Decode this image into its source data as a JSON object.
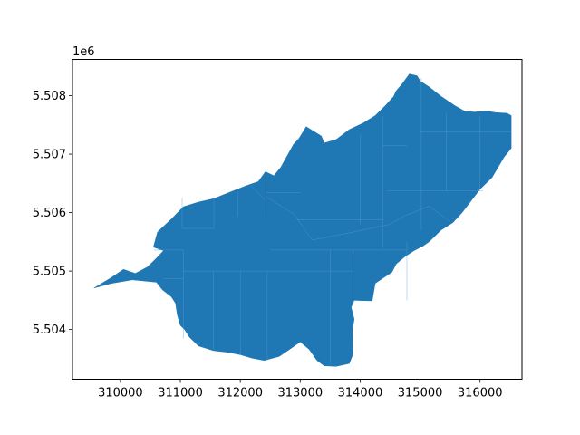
{
  "chart_data": {
    "type": "map",
    "title": "",
    "xlabel": "",
    "ylabel": "",
    "y_offset_label": "1e6",
    "xlim": [
      309200,
      316700
    ],
    "ylim": [
      5503150,
      5508620
    ],
    "y_scale_factor": 1000000,
    "x_ticks": [
      {
        "value": 310000,
        "label": "310000"
      },
      {
        "value": 311000,
        "label": "311000"
      },
      {
        "value": 312000,
        "label": "312000"
      },
      {
        "value": 313000,
        "label": "313000"
      },
      {
        "value": 314000,
        "label": "314000"
      },
      {
        "value": 315000,
        "label": "315000"
      },
      {
        "value": 316000,
        "label": "316000"
      }
    ],
    "y_ticks": [
      {
        "value": 5504000,
        "label": "5.504"
      },
      {
        "value": 5505000,
        "label": "5.505"
      },
      {
        "value": 5506000,
        "label": "5.506"
      },
      {
        "value": 5507000,
        "label": "5.507"
      },
      {
        "value": 5508000,
        "label": "5.508"
      }
    ],
    "grid": false,
    "fill_color": "#1f77b4",
    "edge_color": "#5b9bd0",
    "outline": [
      [
        309560,
        5504710
      ],
      [
        309850,
        5504890
      ],
      [
        310050,
        5505030
      ],
      [
        310250,
        5504960
      ],
      [
        310450,
        5505070
      ],
      [
        310600,
        5505220
      ],
      [
        310720,
        5505350
      ],
      [
        310550,
        5505410
      ],
      [
        310620,
        5505670
      ],
      [
        310860,
        5505900
      ],
      [
        311050,
        5506100
      ],
      [
        311300,
        5506180
      ],
      [
        311560,
        5506240
      ],
      [
        311900,
        5506380
      ],
      [
        312100,
        5506460
      ],
      [
        312300,
        5506530
      ],
      [
        312420,
        5506700
      ],
      [
        312560,
        5506630
      ],
      [
        312680,
        5506780
      ],
      [
        312890,
        5507170
      ],
      [
        312980,
        5507270
      ],
      [
        313100,
        5507470
      ],
      [
        313350,
        5507310
      ],
      [
        313400,
        5507190
      ],
      [
        313600,
        5507250
      ],
      [
        313820,
        5507420
      ],
      [
        314050,
        5507530
      ],
      [
        314250,
        5507660
      ],
      [
        314420,
        5507830
      ],
      [
        314560,
        5507990
      ],
      [
        314600,
        5508080
      ],
      [
        314700,
        5508200
      ],
      [
        314820,
        5508370
      ],
      [
        314950,
        5508340
      ],
      [
        315000,
        5508250
      ],
      [
        315150,
        5508150
      ],
      [
        315350,
        5507990
      ],
      [
        315580,
        5507830
      ],
      [
        315750,
        5507730
      ],
      [
        315910,
        5507720
      ],
      [
        316100,
        5507740
      ],
      [
        316260,
        5507710
      ],
      [
        316450,
        5507700
      ],
      [
        316520,
        5507660
      ],
      [
        316520,
        5507450
      ],
      [
        316520,
        5507100
      ],
      [
        316400,
        5506950
      ],
      [
        316200,
        5506600
      ],
      [
        316000,
        5506400
      ],
      [
        315850,
        5506200
      ],
      [
        315700,
        5506000
      ],
      [
        315550,
        5505830
      ],
      [
        315350,
        5505700
      ],
      [
        315250,
        5505600
      ],
      [
        315150,
        5505500
      ],
      [
        315050,
        5505430
      ],
      [
        314900,
        5505350
      ],
      [
        314750,
        5505250
      ],
      [
        314600,
        5505120
      ],
      [
        314530,
        5504980
      ],
      [
        314380,
        5504880
      ],
      [
        314250,
        5504790
      ],
      [
        314200,
        5504490
      ],
      [
        313900,
        5504500
      ],
      [
        313850,
        5504380
      ],
      [
        313900,
        5504180
      ],
      [
        313870,
        5503980
      ],
      [
        313880,
        5503580
      ],
      [
        313820,
        5503420
      ],
      [
        313600,
        5503370
      ],
      [
        313400,
        5503380
      ],
      [
        313280,
        5503470
      ],
      [
        313150,
        5503660
      ],
      [
        313000,
        5503790
      ],
      [
        312850,
        5503680
      ],
      [
        312650,
        5503540
      ],
      [
        312400,
        5503470
      ],
      [
        312200,
        5503510
      ],
      [
        312000,
        5503570
      ],
      [
        311800,
        5503610
      ],
      [
        311550,
        5503640
      ],
      [
        311300,
        5503720
      ],
      [
        311150,
        5503870
      ],
      [
        311070,
        5504000
      ],
      [
        311000,
        5504070
      ],
      [
        310950,
        5504250
      ],
      [
        310920,
        5504450
      ],
      [
        310850,
        5504560
      ],
      [
        310700,
        5504680
      ],
      [
        310600,
        5504810
      ],
      [
        310200,
        5504850
      ],
      [
        309850,
        5504790
      ]
    ],
    "internal_lines": [
      [
        [
          311030,
          5506250
        ],
        [
          311030,
          5505730
        ]
      ],
      [
        [
          311030,
          5505730
        ],
        [
          311560,
          5505730
        ]
      ],
      [
        [
          311560,
          5506240
        ],
        [
          311560,
          5505730
        ]
      ],
      [
        [
          311960,
          5506360
        ],
        [
          311960,
          5505930
        ]
      ],
      [
        [
          312430,
          5506680
        ],
        [
          312430,
          5505930
        ]
      ],
      [
        [
          312430,
          5506340
        ],
        [
          313000,
          5506340
        ]
      ],
      [
        [
          312180,
          5506460
        ],
        [
          312430,
          5506200
        ]
      ],
      [
        [
          312420,
          5506280
        ],
        [
          312900,
          5505970
        ]
      ],
      [
        [
          312900,
          5505970
        ],
        [
          313200,
          5505530
        ]
      ],
      [
        [
          313200,
          5505530
        ],
        [
          313800,
          5505650
        ]
      ],
      [
        [
          313800,
          5505650
        ],
        [
          314500,
          5505800
        ]
      ],
      [
        [
          314500,
          5505800
        ],
        [
          314750,
          5505950
        ]
      ],
      [
        [
          314750,
          5505950
        ],
        [
          315150,
          5506110
        ]
      ],
      [
        [
          315150,
          5506110
        ],
        [
          315500,
          5505850
        ]
      ],
      [
        [
          312950,
          5505880
        ],
        [
          314380,
          5505880
        ]
      ],
      [
        [
          314380,
          5507650
        ],
        [
          314380,
          5505400
        ]
      ],
      [
        [
          314000,
          5507330
        ],
        [
          314000,
          5505800
        ]
      ],
      [
        [
          312500,
          5505360
        ],
        [
          313950,
          5505360
        ]
      ],
      [
        [
          313950,
          5505360
        ],
        [
          314780,
          5505360
        ]
      ],
      [
        [
          314780,
          5505500
        ],
        [
          314780,
          5504500
        ]
      ],
      [
        [
          314450,
          5506370
        ],
        [
          315330,
          5506370
        ]
      ],
      [
        [
          315330,
          5506370
        ],
        [
          316050,
          5506370
        ]
      ],
      [
        [
          315020,
          5508300
        ],
        [
          315020,
          5505700
        ]
      ],
      [
        [
          315440,
          5507700
        ],
        [
          315440,
          5506370
        ]
      ],
      [
        [
          316000,
          5507650
        ],
        [
          316000,
          5506400
        ]
      ],
      [
        [
          315000,
          5507380
        ],
        [
          316520,
          5507380
        ]
      ],
      [
        [
          310560,
          5505360
        ],
        [
          311050,
          5505360
        ]
      ],
      [
        [
          310720,
          5504870
        ],
        [
          311050,
          5504870
        ]
      ],
      [
        [
          311050,
          5505360
        ],
        [
          311050,
          5503850
        ]
      ],
      [
        [
          312000,
          5505000
        ],
        [
          312000,
          5503570
        ]
      ],
      [
        [
          312450,
          5505000
        ],
        [
          312450,
          5503470
        ]
      ],
      [
        [
          313500,
          5505360
        ],
        [
          313500,
          5503400
        ]
      ],
      [
        [
          311550,
          5505000
        ],
        [
          311550,
          5503650
        ]
      ],
      [
        [
          311050,
          5505000
        ],
        [
          313880,
          5505000
        ]
      ],
      [
        [
          313880,
          5505360
        ],
        [
          313880,
          5504180
        ]
      ],
      [
        [
          314380,
          5507150
        ],
        [
          314780,
          5507150
        ]
      ]
    ]
  }
}
